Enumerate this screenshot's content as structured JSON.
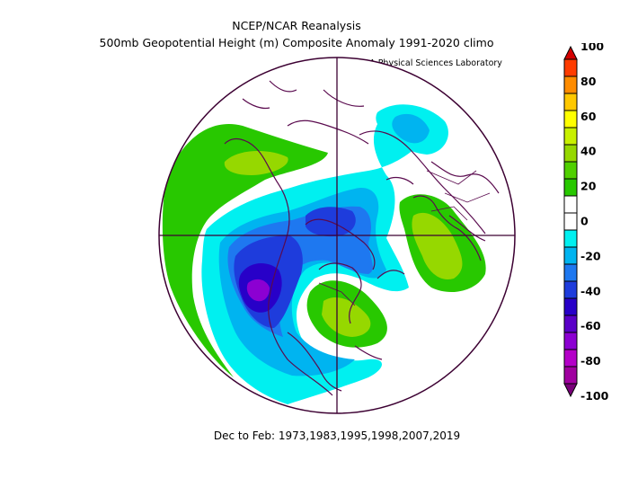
{
  "title_line1": "NCEP/NCAR Reanalysis",
  "title_line2": "500mb Geopotential Height (m) Composite Anomaly 1991-2020 climo",
  "credit": "NOAA Physical Sciences Laboratory",
  "footer": "Dec to Feb: 1973,1983,1995,1998,2007,2019",
  "colorbar": {
    "min": -100,
    "max": 100,
    "interval": 10,
    "tick_labels": [
      "100",
      "80",
      "60",
      "40",
      "20",
      "0",
      "-20",
      "-40",
      "-60",
      "-80",
      "-100"
    ],
    "colors": [
      "#d40000",
      "#ff3c00",
      "#ff8c00",
      "#ffc800",
      "#ffff00",
      "#c8f000",
      "#96d800",
      "#50d000",
      "#28c800",
      "#ffffff",
      "#ffffff",
      "#00f0f0",
      "#00b4f0",
      "#1e78f0",
      "#1e3cdc",
      "#2800c8",
      "#5a00c8",
      "#8c00d2",
      "#b400c8",
      "#a000a0",
      "#780078"
    ]
  },
  "map_colors": {
    "coast": "#5a0a4e",
    "frame": "#3c0032"
  }
}
